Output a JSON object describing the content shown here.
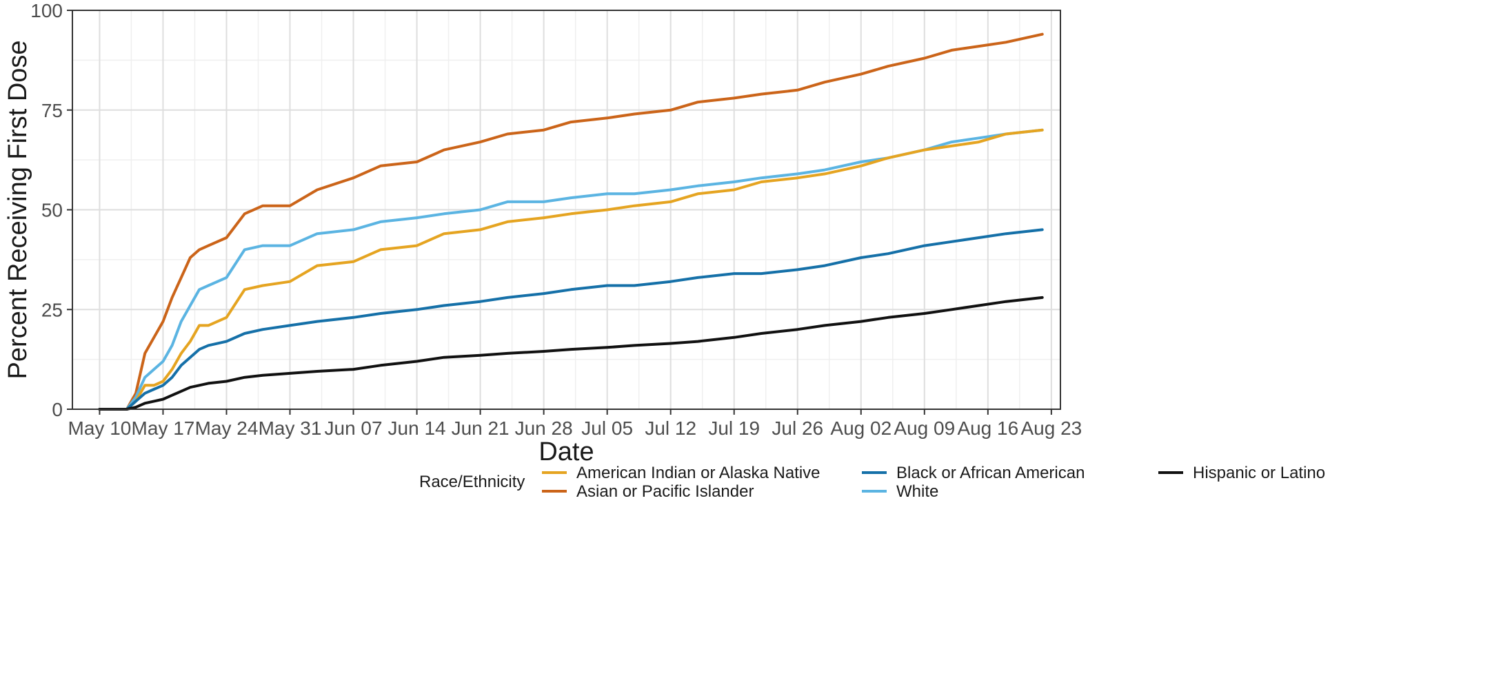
{
  "chart_data": {
    "type": "line",
    "xlabel": "Date",
    "ylabel": "Percent Receiving First Dose",
    "x_ticks": [
      "May 10",
      "May 17",
      "May 24",
      "May 31",
      "Jun 07",
      "Jun 14",
      "Jun 21",
      "Jun 28",
      "Jul 05",
      "Jul 12",
      "Jul 19",
      "Jul 26",
      "Aug 02",
      "Aug 09",
      "Aug 16",
      "Aug 23"
    ],
    "x_tick_dates": [
      "2021-05-10",
      "2021-05-17",
      "2021-05-24",
      "2021-05-31",
      "2021-06-07",
      "2021-06-14",
      "2021-06-21",
      "2021-06-28",
      "2021-07-05",
      "2021-07-12",
      "2021-07-19",
      "2021-07-26",
      "2021-08-02",
      "2021-08-09",
      "2021-08-16",
      "2021-08-23"
    ],
    "xlim": [
      "2021-05-07",
      "2021-08-24"
    ],
    "y_ticks": [
      "0",
      "25",
      "50",
      "75",
      "100"
    ],
    "ylim": [
      0,
      100
    ],
    "grid": true,
    "legend": {
      "title": "Race/Ethnicity",
      "position": "bottom",
      "entries": [
        {
          "name": "American Indian or Alaska Native",
          "color": "#E5A421"
        },
        {
          "name": "Asian or Pacific Islander",
          "color": "#CB6419"
        },
        {
          "name": "Black or African American",
          "color": "#1570A8"
        },
        {
          "name": "White",
          "color": "#5BB4E2"
        },
        {
          "name": "Hispanic or Latino",
          "color": "#111111"
        }
      ]
    },
    "series": [
      {
        "name": "Asian or Pacific Islander",
        "color": "#CB6419",
        "x": [
          "2021-05-10",
          "2021-05-11",
          "2021-05-12",
          "2021-05-13",
          "2021-05-14",
          "2021-05-15",
          "2021-05-16",
          "2021-05-17",
          "2021-05-18",
          "2021-05-19",
          "2021-05-20",
          "2021-05-21",
          "2021-05-22",
          "2021-05-24",
          "2021-05-26",
          "2021-05-28",
          "2021-05-31",
          "2021-06-03",
          "2021-06-07",
          "2021-06-10",
          "2021-06-14",
          "2021-06-17",
          "2021-06-21",
          "2021-06-24",
          "2021-06-28",
          "2021-07-01",
          "2021-07-05",
          "2021-07-08",
          "2021-07-12",
          "2021-07-15",
          "2021-07-19",
          "2021-07-22",
          "2021-07-26",
          "2021-07-29",
          "2021-08-02",
          "2021-08-05",
          "2021-08-09",
          "2021-08-12",
          "2021-08-15",
          "2021-08-18",
          "2021-08-22"
        ],
        "y": [
          0,
          0,
          0,
          0,
          4,
          14,
          18,
          22,
          28,
          33,
          38,
          40,
          41,
          43,
          49,
          51,
          51,
          55,
          58,
          61,
          62,
          65,
          67,
          69,
          70,
          72,
          73,
          74,
          75,
          77,
          78,
          79,
          80,
          82,
          84,
          86,
          88,
          90,
          91,
          92,
          94
        ]
      },
      {
        "name": "White",
        "color": "#5BB4E2",
        "x": [
          "2021-05-10",
          "2021-05-11",
          "2021-05-12",
          "2021-05-13",
          "2021-05-14",
          "2021-05-15",
          "2021-05-16",
          "2021-05-17",
          "2021-05-18",
          "2021-05-19",
          "2021-05-20",
          "2021-05-21",
          "2021-05-22",
          "2021-05-24",
          "2021-05-26",
          "2021-05-28",
          "2021-05-31",
          "2021-06-03",
          "2021-06-07",
          "2021-06-10",
          "2021-06-14",
          "2021-06-17",
          "2021-06-21",
          "2021-06-24",
          "2021-06-28",
          "2021-07-01",
          "2021-07-05",
          "2021-07-08",
          "2021-07-12",
          "2021-07-15",
          "2021-07-19",
          "2021-07-22",
          "2021-07-26",
          "2021-07-29",
          "2021-08-02",
          "2021-08-05",
          "2021-08-09",
          "2021-08-12",
          "2021-08-15",
          "2021-08-18",
          "2021-08-22"
        ],
        "y": [
          0,
          0,
          0,
          0,
          3,
          8,
          10,
          12,
          16,
          22,
          26,
          30,
          31,
          33,
          40,
          41,
          41,
          44,
          45,
          47,
          48,
          49,
          50,
          52,
          52,
          53,
          54,
          54,
          55,
          56,
          57,
          58,
          59,
          60,
          62,
          63,
          65,
          67,
          68,
          69,
          70
        ]
      },
      {
        "name": "American Indian or Alaska Native",
        "color": "#E5A421",
        "x": [
          "2021-05-10",
          "2021-05-11",
          "2021-05-12",
          "2021-05-13",
          "2021-05-14",
          "2021-05-15",
          "2021-05-16",
          "2021-05-17",
          "2021-05-18",
          "2021-05-19",
          "2021-05-20",
          "2021-05-21",
          "2021-05-22",
          "2021-05-24",
          "2021-05-26",
          "2021-05-28",
          "2021-05-31",
          "2021-06-03",
          "2021-06-07",
          "2021-06-10",
          "2021-06-14",
          "2021-06-17",
          "2021-06-21",
          "2021-06-24",
          "2021-06-28",
          "2021-07-01",
          "2021-07-05",
          "2021-07-08",
          "2021-07-12",
          "2021-07-15",
          "2021-07-19",
          "2021-07-22",
          "2021-07-26",
          "2021-07-29",
          "2021-08-02",
          "2021-08-05",
          "2021-08-09",
          "2021-08-12",
          "2021-08-15",
          "2021-08-18",
          "2021-08-22"
        ],
        "y": [
          0,
          0,
          0,
          0,
          2,
          6,
          6,
          7,
          10,
          14,
          17,
          21,
          21,
          23,
          30,
          31,
          32,
          36,
          37,
          40,
          41,
          44,
          45,
          47,
          48,
          49,
          50,
          51,
          52,
          54,
          55,
          57,
          58,
          59,
          61,
          63,
          65,
          66,
          67,
          69,
          70
        ]
      },
      {
        "name": "Black or African American",
        "color": "#1570A8",
        "x": [
          "2021-05-10",
          "2021-05-11",
          "2021-05-12",
          "2021-05-13",
          "2021-05-14",
          "2021-05-15",
          "2021-05-16",
          "2021-05-17",
          "2021-05-18",
          "2021-05-19",
          "2021-05-20",
          "2021-05-21",
          "2021-05-22",
          "2021-05-24",
          "2021-05-26",
          "2021-05-28",
          "2021-05-31",
          "2021-06-03",
          "2021-06-07",
          "2021-06-10",
          "2021-06-14",
          "2021-06-17",
          "2021-06-21",
          "2021-06-24",
          "2021-06-28",
          "2021-07-01",
          "2021-07-05",
          "2021-07-08",
          "2021-07-12",
          "2021-07-15",
          "2021-07-19",
          "2021-07-22",
          "2021-07-26",
          "2021-07-29",
          "2021-08-02",
          "2021-08-05",
          "2021-08-09",
          "2021-08-12",
          "2021-08-15",
          "2021-08-18",
          "2021-08-22"
        ],
        "y": [
          0,
          0,
          0,
          0,
          2,
          4,
          5,
          6,
          8,
          11,
          13,
          15,
          16,
          17,
          19,
          20,
          21,
          22,
          23,
          24,
          25,
          26,
          27,
          28,
          29,
          30,
          31,
          31,
          32,
          33,
          34,
          34,
          35,
          36,
          38,
          39,
          41,
          42,
          43,
          44,
          45
        ]
      },
      {
        "name": "Hispanic or Latino",
        "color": "#111111",
        "x": [
          "2021-05-10",
          "2021-05-11",
          "2021-05-12",
          "2021-05-13",
          "2021-05-14",
          "2021-05-15",
          "2021-05-16",
          "2021-05-17",
          "2021-05-18",
          "2021-05-19",
          "2021-05-20",
          "2021-05-21",
          "2021-05-22",
          "2021-05-24",
          "2021-05-26",
          "2021-05-28",
          "2021-05-31",
          "2021-06-03",
          "2021-06-07",
          "2021-06-10",
          "2021-06-14",
          "2021-06-17",
          "2021-06-21",
          "2021-06-24",
          "2021-06-28",
          "2021-07-01",
          "2021-07-05",
          "2021-07-08",
          "2021-07-12",
          "2021-07-15",
          "2021-07-19",
          "2021-07-22",
          "2021-07-26",
          "2021-07-29",
          "2021-08-02",
          "2021-08-05",
          "2021-08-09",
          "2021-08-12",
          "2021-08-15",
          "2021-08-18",
          "2021-08-22"
        ],
        "y": [
          0,
          0,
          0,
          0,
          0.5,
          1.5,
          2,
          2.5,
          3.5,
          4.5,
          5.5,
          6,
          6.5,
          7,
          8,
          8.5,
          9,
          9.5,
          10,
          11,
          12,
          13,
          13.5,
          14,
          14.5,
          15,
          15.5,
          16,
          16.5,
          17,
          18,
          19,
          20,
          21,
          22,
          23,
          24,
          25,
          26,
          27,
          28
        ]
      }
    ]
  }
}
